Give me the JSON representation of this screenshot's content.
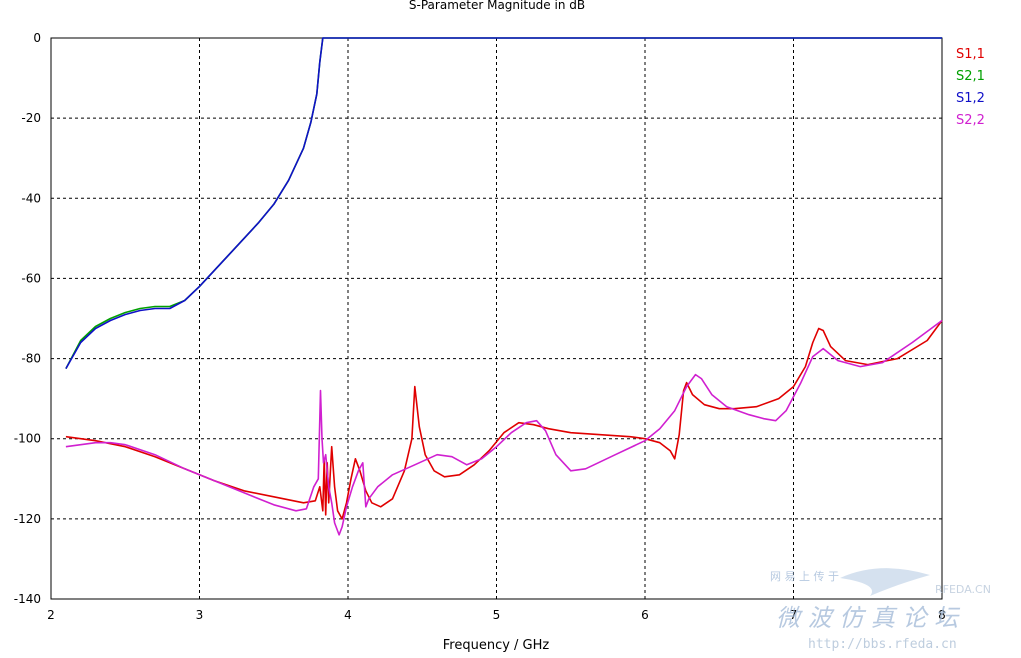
{
  "chart_data": {
    "type": "line",
    "title": "S-Parameter Magnitude in dB",
    "xlabel": "Frequency / GHz",
    "ylabel": "",
    "xlim": [
      2,
      8
    ],
    "ylim": [
      -140,
      0
    ],
    "xticks": [
      "2",
      "3",
      "4",
      "5",
      "6",
      "7",
      "8"
    ],
    "yticks": [
      "0",
      "-20",
      "-40",
      "-60",
      "-80",
      "-100",
      "-120",
      "-140"
    ],
    "grid": true,
    "legend_position": "right",
    "series": [
      {
        "name": "S1,1",
        "color": "#e00000",
        "x": [
          2.1,
          2.3,
          2.5,
          2.7,
          2.9,
          3.1,
          3.3,
          3.5,
          3.7,
          3.78,
          3.81,
          3.83,
          3.84,
          3.85,
          3.86,
          3.87,
          3.89,
          3.91,
          3.93,
          3.96,
          3.99,
          4.02,
          4.05,
          4.08,
          4.12,
          4.16,
          4.22,
          4.3,
          4.38,
          4.43,
          4.45,
          4.48,
          4.52,
          4.58,
          4.65,
          4.75,
          4.85,
          4.95,
          5.05,
          5.15,
          5.25,
          5.35,
          5.5,
          5.7,
          5.9,
          6.0,
          6.1,
          6.17,
          6.2,
          6.23,
          6.26,
          6.28,
          6.32,
          6.4,
          6.5,
          6.6,
          6.75,
          6.9,
          7.0,
          7.08,
          7.13,
          7.17,
          7.2,
          7.25,
          7.35,
          7.5,
          7.7,
          7.9,
          8.0
        ],
        "y": [
          -99.5,
          -100.5,
          -102,
          -104.5,
          -107.5,
          -110.5,
          -113,
          -114.5,
          -116,
          -115.5,
          -112,
          -118,
          -105,
          -119,
          -106,
          -116,
          -102,
          -112,
          -118,
          -120,
          -116,
          -110,
          -105,
          -108,
          -113,
          -116,
          -117,
          -115,
          -108,
          -100,
          -87,
          -97,
          -104,
          -108,
          -109.5,
          -109,
          -106.5,
          -103,
          -98.5,
          -96,
          -96.5,
          -97.5,
          -98.5,
          -99,
          -99.5,
          -100,
          -101,
          -103,
          -105,
          -99,
          -88,
          -86,
          -89,
          -91.5,
          -92.5,
          -92.5,
          -92,
          -90,
          -87,
          -82,
          -76,
          -72.5,
          -73,
          -77,
          -80.5,
          -81.5,
          -80,
          -75.5,
          -70.5
        ]
      },
      {
        "name": "S2,1",
        "color": "#00a000",
        "x": [
          2.1,
          2.2,
          2.3,
          2.4,
          2.5,
          2.6,
          2.7,
          2.8,
          2.9,
          3.0,
          3.2,
          3.4,
          3.5,
          3.6,
          3.7,
          3.75,
          3.79,
          3.81,
          3.82,
          3.83,
          3.84,
          8.0
        ],
        "y": [
          -82.5,
          -75.5,
          -72,
          -70,
          -68.5,
          -67.5,
          -67,
          -67,
          -65.5,
          -62,
          -54,
          -46,
          -41.5,
          -35.5,
          -27.5,
          -21,
          -14,
          -6,
          -3,
          0,
          0,
          0
        ]
      },
      {
        "name": "S1,2",
        "color": "#1010c8",
        "x": [
          2.1,
          2.2,
          2.3,
          2.4,
          2.5,
          2.6,
          2.7,
          2.8,
          2.9,
          3.0,
          3.2,
          3.4,
          3.5,
          3.6,
          3.7,
          3.75,
          3.79,
          3.81,
          3.82,
          3.83,
          3.84,
          8.0
        ],
        "y": [
          -82.5,
          -76,
          -72.5,
          -70.5,
          -69,
          -68,
          -67.5,
          -67.5,
          -65.5,
          -62,
          -54,
          -46,
          -41.5,
          -35.5,
          -27.5,
          -21,
          -14,
          -6,
          -3,
          0,
          0,
          0
        ]
      },
      {
        "name": "S2,2",
        "color": "#d020d0",
        "x": [
          2.1,
          2.2,
          2.3,
          2.4,
          2.5,
          2.7,
          2.9,
          3.1,
          3.3,
          3.5,
          3.65,
          3.72,
          3.77,
          3.8,
          3.815,
          3.825,
          3.835,
          3.85,
          3.87,
          3.89,
          3.91,
          3.94,
          3.96,
          3.99,
          4.03,
          4.07,
          4.1,
          4.12,
          4.14,
          4.2,
          4.3,
          4.45,
          4.6,
          4.7,
          4.8,
          4.9,
          5.0,
          5.1,
          5.2,
          5.27,
          5.33,
          5.4,
          5.5,
          5.6,
          5.8,
          6.0,
          6.1,
          6.2,
          6.28,
          6.34,
          6.38,
          6.45,
          6.55,
          6.7,
          6.8,
          6.88,
          6.95,
          7.05,
          7.13,
          7.2,
          7.3,
          7.45,
          7.6,
          7.8,
          8.0
        ],
        "y": [
          -102,
          -101.5,
          -101,
          -101,
          -101.5,
          -104,
          -107.5,
          -110.5,
          -113.5,
          -116.5,
          -118,
          -117.5,
          -112,
          -110,
          -88,
          -100,
          -106,
          -104,
          -112,
          -116,
          -121,
          -124,
          -122,
          -117,
          -112,
          -108,
          -106,
          -117,
          -115,
          -112,
          -109,
          -106.5,
          -104,
          -104.5,
          -106.5,
          -105,
          -102,
          -98.5,
          -96,
          -95.5,
          -98,
          -104,
          -108,
          -107.5,
          -104,
          -100.5,
          -97.5,
          -93,
          -87,
          -84,
          -85,
          -89,
          -92,
          -94,
          -95,
          -95.5,
          -93,
          -86,
          -79.5,
          -77.5,
          -80.5,
          -82,
          -81,
          -76,
          -70.5
        ]
      }
    ]
  },
  "watermark": {
    "line1": "网 易 上 传 于",
    "brand": "RFEDA.CN",
    "cn": "微 波 仿 真 论 坛",
    "url": "http://bbs.rfeda.cn"
  }
}
